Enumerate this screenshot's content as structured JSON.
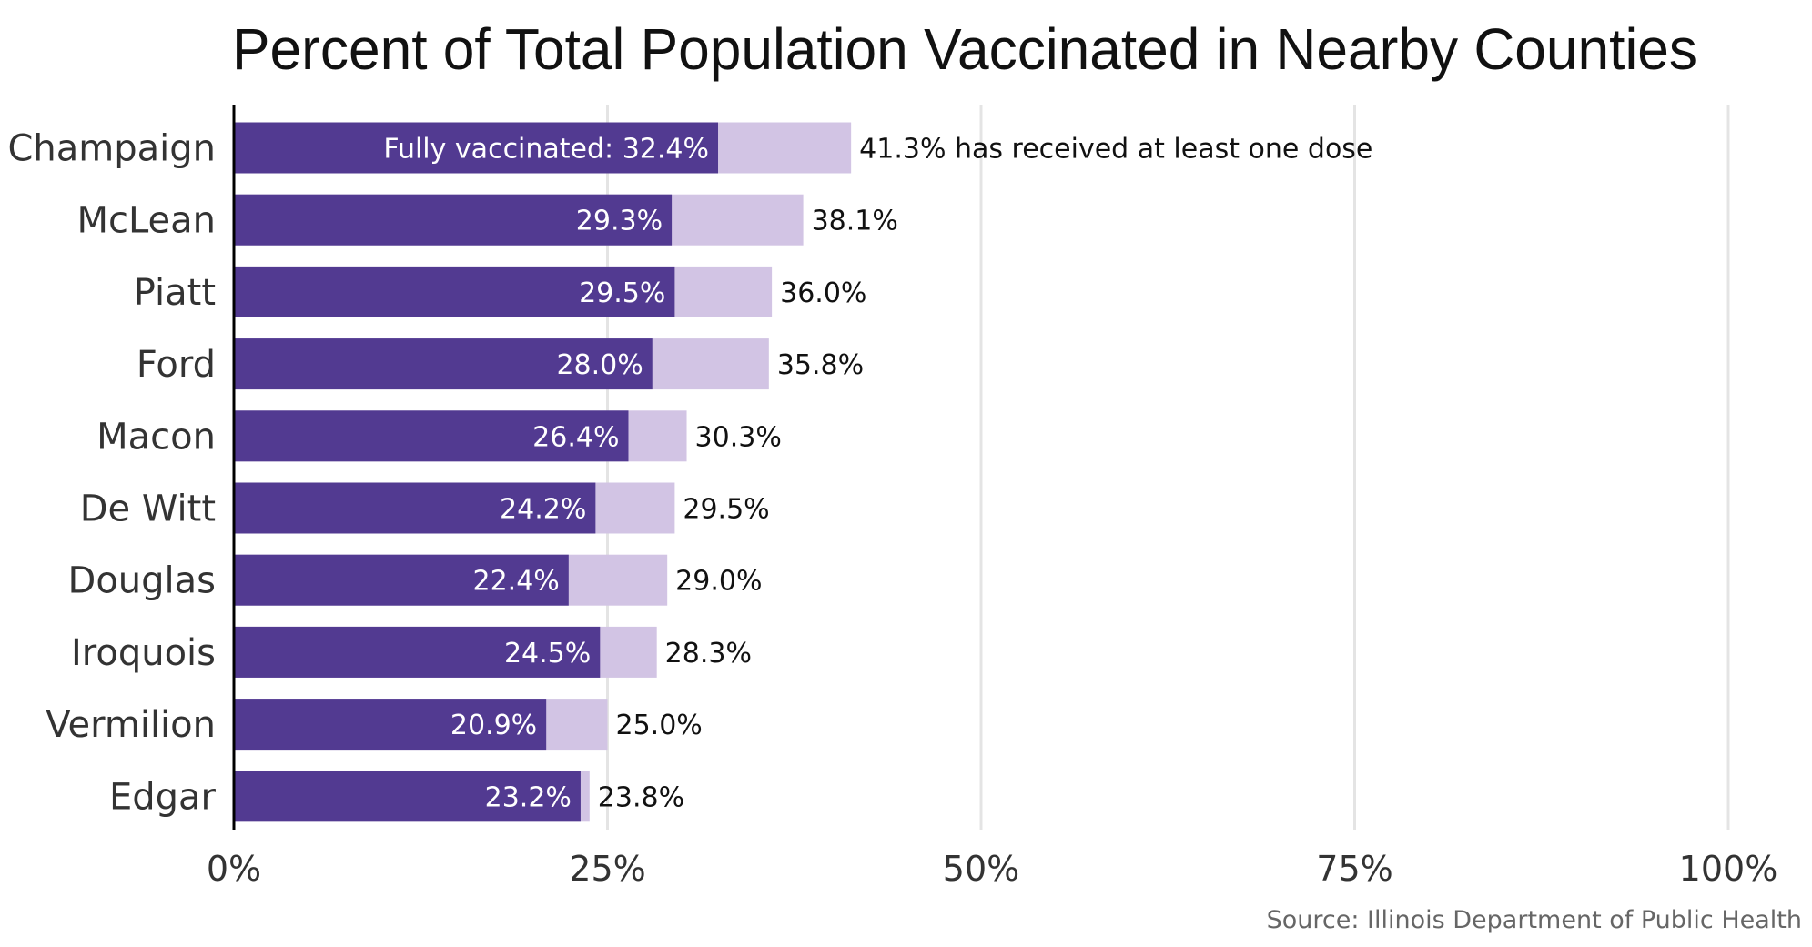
{
  "colors": {
    "fully": "#523A91",
    "at_least_one": "#D2C4E4",
    "grid": "#E4E4E4",
    "axis": "#000000"
  },
  "chart_data": {
    "type": "bar",
    "orientation": "horizontal",
    "stacked": "overlay",
    "title": "Percent of Total Population Vaccinated in Nearby Counties",
    "categories": [
      "Champaign",
      "McLean",
      "Piatt",
      "Ford",
      "Macon",
      "De Witt",
      "Douglas",
      "Iroquois",
      "Vermilion",
      "Edgar"
    ],
    "series": [
      {
        "name": "Fully vaccinated",
        "values": [
          32.4,
          29.3,
          29.5,
          28.0,
          26.4,
          24.2,
          22.4,
          24.5,
          20.9,
          23.2
        ],
        "labels": [
          "Fully vaccinated: 32.4%",
          "29.3%",
          "29.5%",
          "28.0%",
          "26.4%",
          "24.2%",
          "22.4%",
          "24.5%",
          "20.9%",
          "23.2%"
        ]
      },
      {
        "name": "has received at least one dose",
        "values": [
          41.3,
          38.1,
          36.0,
          35.8,
          30.3,
          29.5,
          29.0,
          28.3,
          25.0,
          23.8
        ],
        "labels": [
          "41.3% has received at least one dose",
          "38.1%",
          "36.0%",
          "35.8%",
          "30.3%",
          "29.5%",
          "29.0%",
          "28.3%",
          "25.0%",
          "23.8%"
        ]
      }
    ],
    "xlim": [
      0,
      100
    ],
    "xticks": [
      0,
      25,
      50,
      75,
      100
    ],
    "xtick_labels": [
      "0%",
      "25%",
      "50%",
      "75%",
      "100%"
    ],
    "grid": true,
    "xlabel": "",
    "ylabel": "",
    "source": "Source: Illinois Department of Public Health"
  }
}
